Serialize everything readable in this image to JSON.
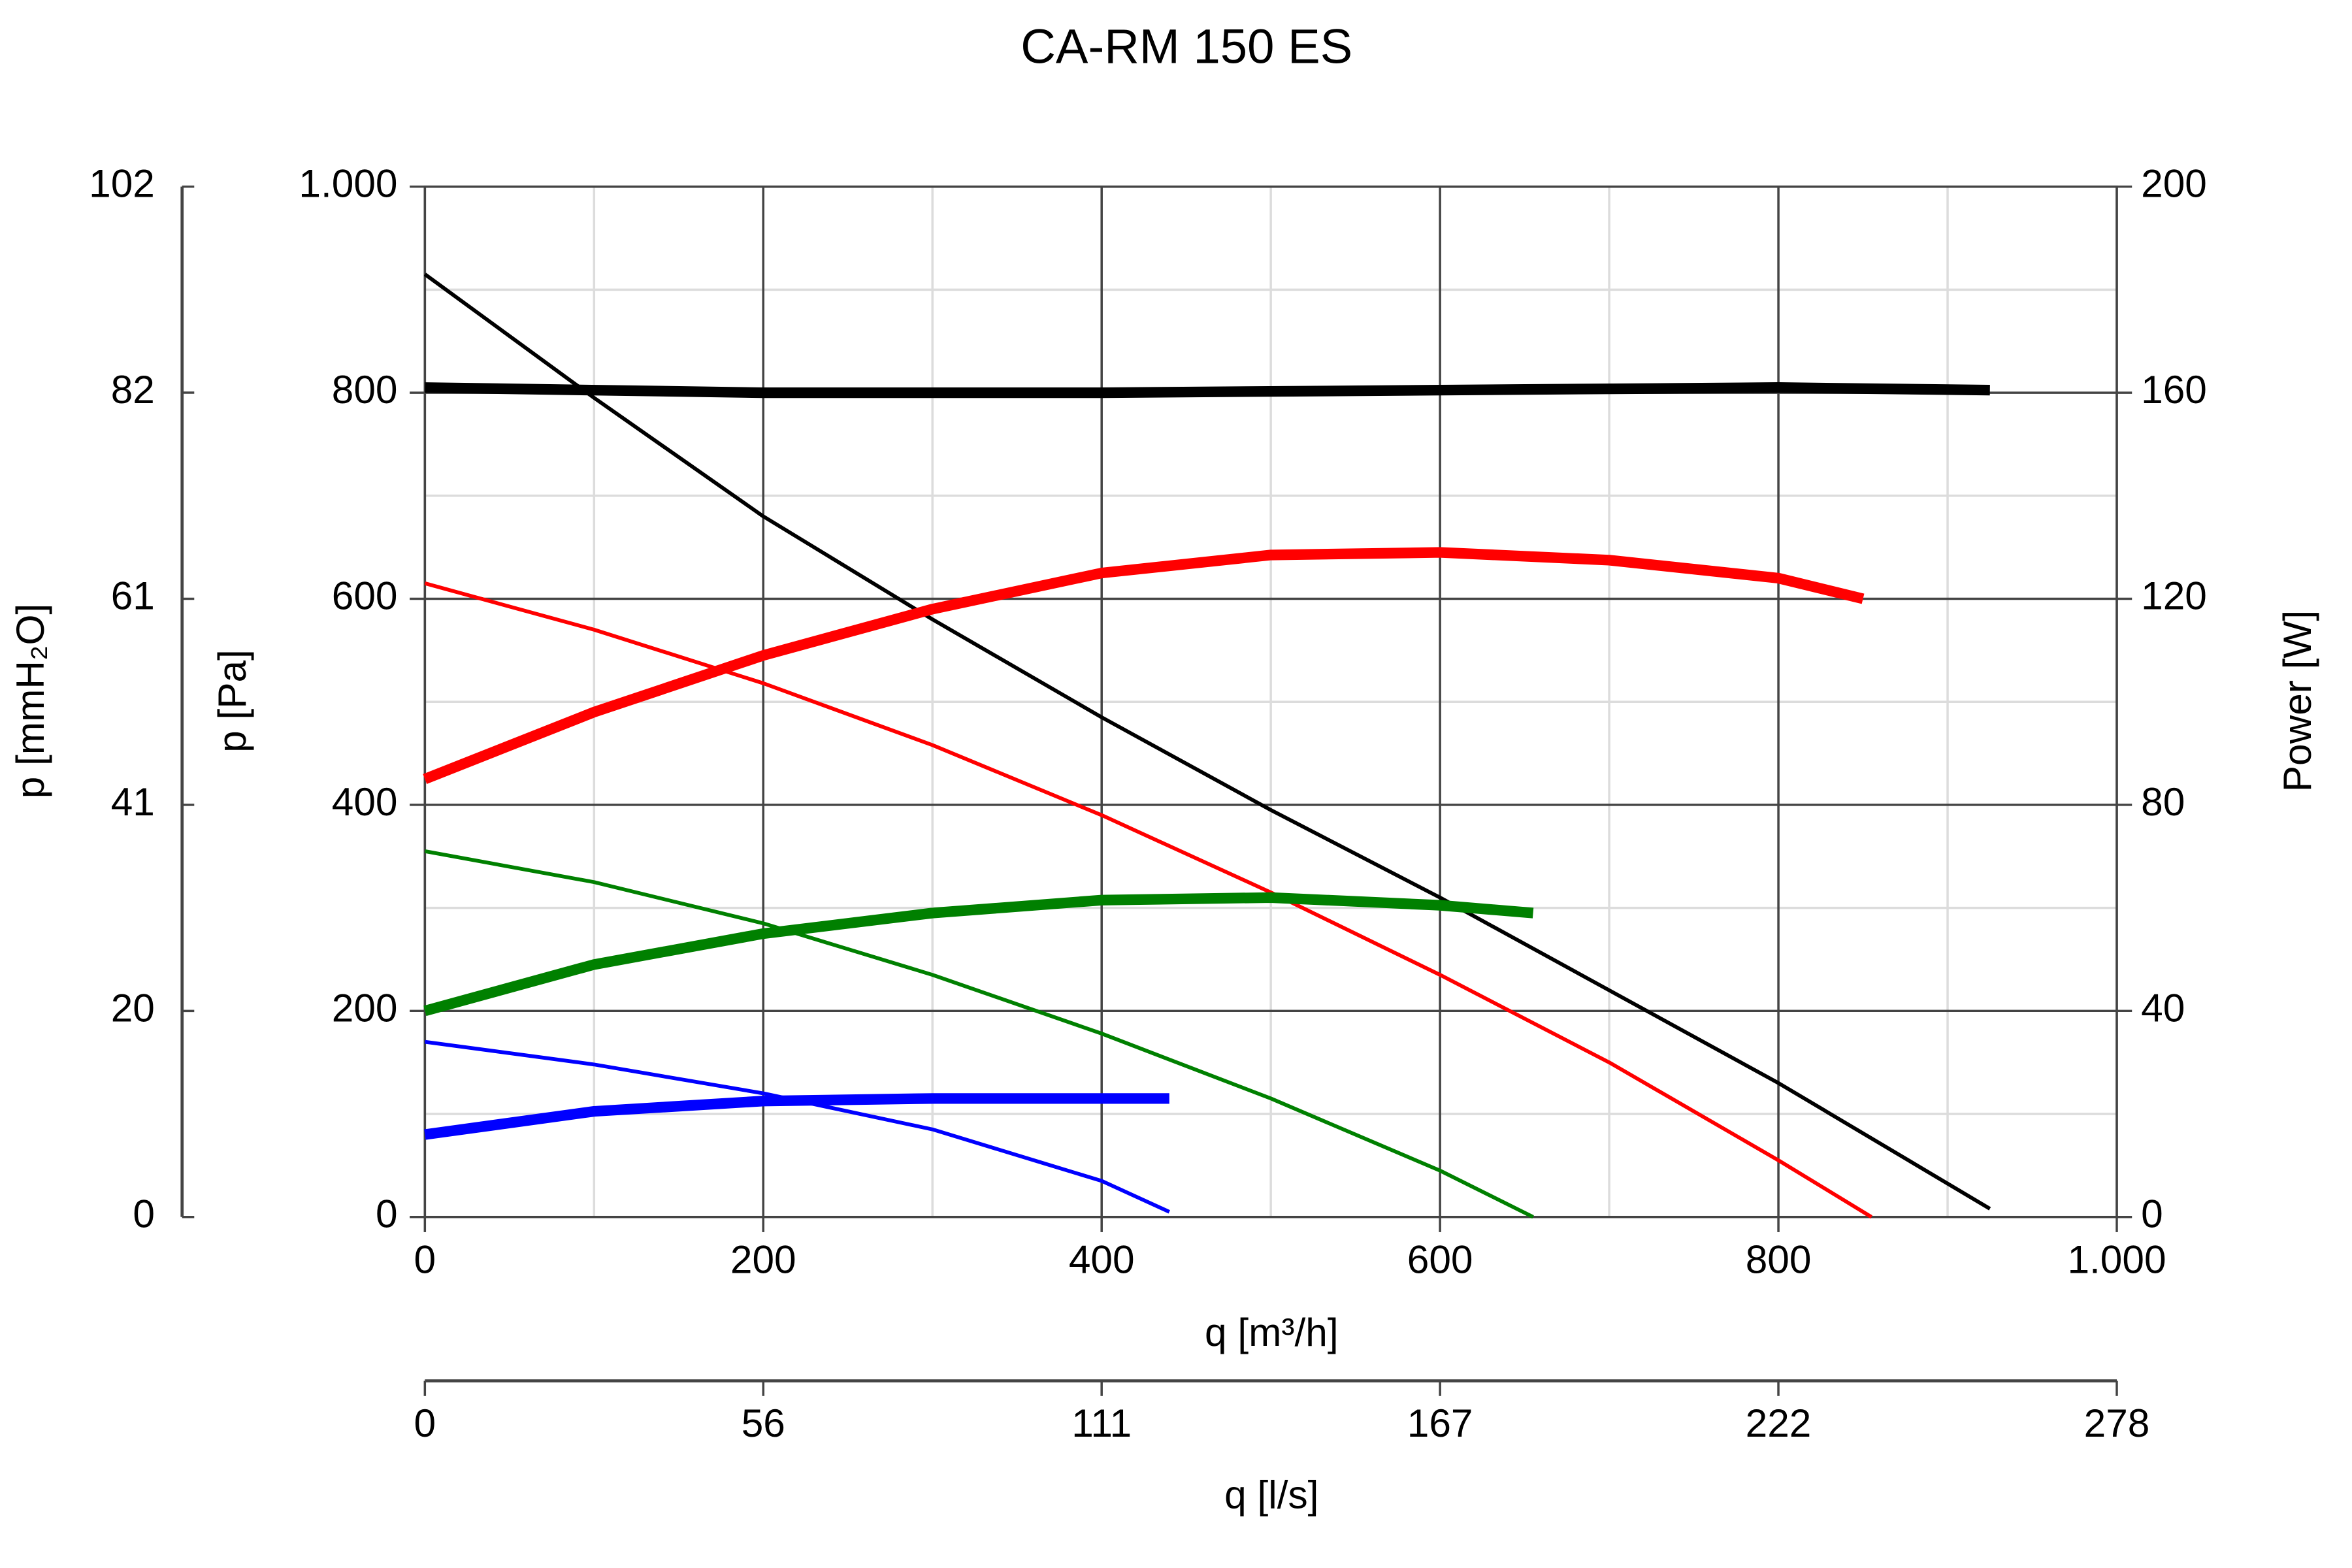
{
  "chart_data": {
    "type": "line",
    "title": "CA-RM 150 ES",
    "x_label": "q [m³/h]",
    "y_label": "p [Pa]",
    "y2_label": "Power [W]",
    "y3_label": "p [mmH₂O]",
    "x2_label": "q [l/s]",
    "xlim": [
      0,
      1000
    ],
    "xticks": [
      0,
      200,
      400,
      600,
      800,
      {
        "value": 1000,
        "label": "1.000"
      }
    ],
    "xminor": [
      100,
      300,
      500,
      700,
      900
    ],
    "ylim": [
      0,
      1000
    ],
    "yticks": [
      0,
      200,
      400,
      600,
      800,
      {
        "value": 1000,
        "label": "1.000"
      }
    ],
    "yminor": [
      100,
      300,
      500,
      700,
      900
    ],
    "y2lim": [
      0,
      200
    ],
    "y2ticks": [
      0,
      40,
      80,
      120,
      160,
      200
    ],
    "y3lim": [
      0,
      101.97
    ],
    "y3ticks": [
      0,
      {
        "value": 20.39,
        "label": "20"
      },
      {
        "value": 40.79,
        "label": "41"
      },
      {
        "value": 61.18,
        "label": "61"
      },
      {
        "value": 81.58,
        "label": "82"
      },
      {
        "value": 101.97,
        "label": "102"
      }
    ],
    "x2lim": [
      0,
      277.78
    ],
    "x2ticks": [
      0,
      {
        "value": 55.56,
        "label": "56"
      },
      {
        "value": 111.11,
        "label": "111"
      },
      {
        "value": 166.67,
        "label": "167"
      },
      {
        "value": 222.22,
        "label": "222"
      },
      {
        "value": 277.78,
        "label": "278"
      }
    ],
    "grid": true,
    "series": [
      {
        "color": "#000000",
        "weight": "normal",
        "x": [
          0,
          100,
          200,
          300,
          400,
          500,
          600,
          700,
          800,
          925
        ],
        "values": [
          915,
          795,
          680,
          580,
          485,
          395,
          310,
          220,
          130,
          8
        ]
      },
      {
        "color": "#000000",
        "weight": "bold",
        "axis": "y2",
        "x": [
          0,
          200,
          400,
          600,
          800,
          925
        ],
        "values": [
          161,
          160,
          160,
          160.5,
          161,
          160.5
        ]
      },
      {
        "color": "#ff0000",
        "weight": "normal",
        "x": [
          0,
          100,
          200,
          300,
          400,
          500,
          600,
          700,
          800,
          855
        ],
        "values": [
          615,
          570,
          518,
          458,
          390,
          315,
          235,
          150,
          55,
          0
        ]
      },
      {
        "color": "#ff0000",
        "weight": "bold",
        "axis": "y2",
        "x": [
          0,
          100,
          200,
          300,
          400,
          500,
          600,
          700,
          800,
          850
        ],
        "values": [
          85,
          98,
          109,
          118,
          125,
          128.5,
          129,
          127.5,
          124,
          120
        ]
      },
      {
        "color": "#008000",
        "weight": "normal",
        "x": [
          0,
          100,
          200,
          300,
          400,
          500,
          600,
          655
        ],
        "values": [
          355,
          325,
          285,
          235,
          178,
          115,
          45,
          0
        ]
      },
      {
        "color": "#008000",
        "weight": "bold",
        "axis": "y2",
        "x": [
          0,
          100,
          200,
          300,
          400,
          500,
          600,
          655
        ],
        "values": [
          40,
          49,
          55,
          59,
          61.5,
          62,
          60.5,
          59
        ]
      },
      {
        "color": "#0000ff",
        "weight": "normal",
        "x": [
          0,
          100,
          200,
          300,
          400,
          440
        ],
        "values": [
          170,
          148,
          120,
          85,
          35,
          5
        ]
      },
      {
        "color": "#0000ff",
        "weight": "bold",
        "axis": "y2",
        "x": [
          0,
          100,
          200,
          300,
          440
        ],
        "values": [
          16,
          20.5,
          22.5,
          23,
          23
        ]
      }
    ]
  }
}
